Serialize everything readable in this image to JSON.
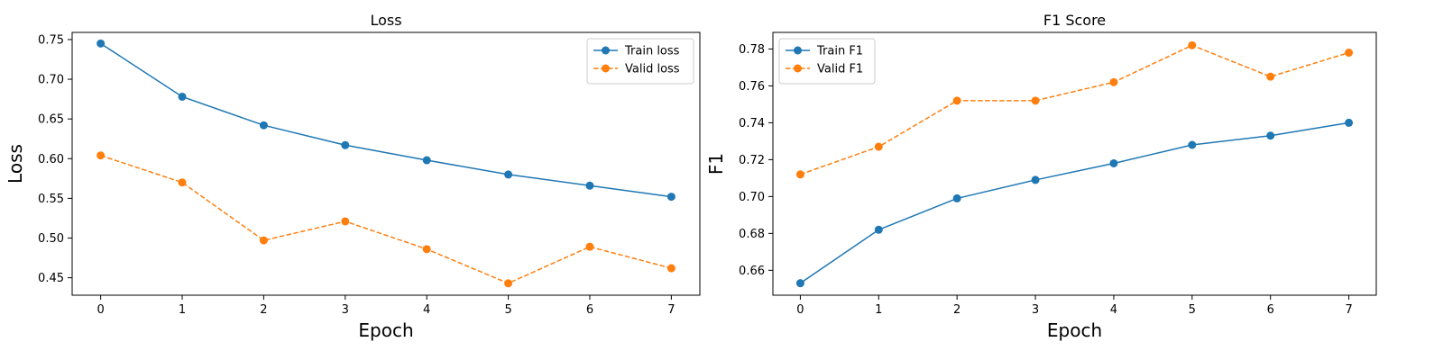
{
  "chart_data": [
    {
      "type": "line",
      "title": "Loss",
      "xlabel": "Epoch",
      "ylabel": "Loss",
      "x": [
        0,
        1,
        2,
        3,
        4,
        5,
        6,
        7
      ],
      "xlim": [
        -0.35,
        7.35
      ],
      "ylim": [
        0.428,
        0.759
      ],
      "yticks": [
        "0.45",
        "0.50",
        "0.55",
        "0.60",
        "0.65",
        "0.70",
        "0.75"
      ],
      "xticks": [
        "0",
        "1",
        "2",
        "3",
        "4",
        "5",
        "6",
        "7"
      ],
      "grid": false,
      "legend_position": "top-right",
      "series": [
        {
          "name": "Train loss",
          "color": "#1f77b4",
          "linestyle": "solid",
          "marker": "circle",
          "values": [
            0.745,
            0.678,
            0.642,
            0.617,
            0.598,
            0.58,
            0.566,
            0.552
          ]
        },
        {
          "name": "Valid loss",
          "color": "#ff7f0e",
          "linestyle": "dashed",
          "marker": "circle",
          "values": [
            0.604,
            0.57,
            0.497,
            0.521,
            0.486,
            0.443,
            0.489,
            0.462
          ]
        }
      ]
    },
    {
      "type": "line",
      "title": "F1 Score",
      "xlabel": "Epoch",
      "ylabel": "F1",
      "x": [
        0,
        1,
        2,
        3,
        4,
        5,
        6,
        7
      ],
      "xlim": [
        -0.35,
        7.35
      ],
      "ylim": [
        0.6465,
        0.789
      ],
      "yticks": [
        "0.66",
        "0.68",
        "0.70",
        "0.72",
        "0.74",
        "0.76",
        "0.78"
      ],
      "xticks": [
        "0",
        "1",
        "2",
        "3",
        "4",
        "5",
        "6",
        "7"
      ],
      "grid": false,
      "legend_position": "top-left",
      "series": [
        {
          "name": "Train F1",
          "color": "#1f77b4",
          "linestyle": "solid",
          "marker": "circle",
          "values": [
            0.653,
            0.682,
            0.699,
            0.709,
            0.718,
            0.728,
            0.733,
            0.74
          ]
        },
        {
          "name": "Valid F1",
          "color": "#ff7f0e",
          "linestyle": "dashed",
          "marker": "circle",
          "values": [
            0.712,
            0.727,
            0.752,
            0.752,
            0.762,
            0.782,
            0.765,
            0.778
          ]
        }
      ]
    }
  ]
}
